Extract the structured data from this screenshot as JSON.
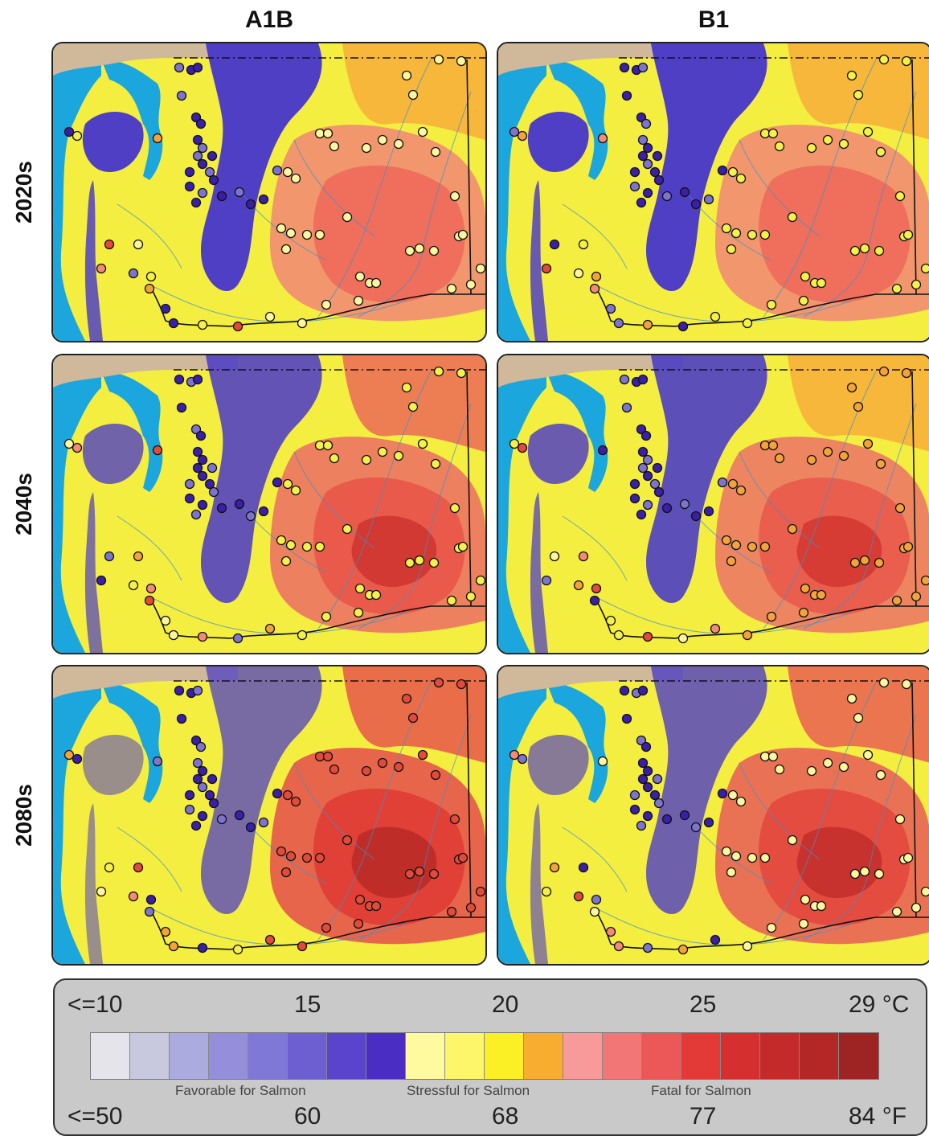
{
  "columns": [
    "A1B",
    "B1"
  ],
  "rows": [
    "2020s",
    "2040s",
    "2080s"
  ],
  "legend": {
    "celsius_ticks": [
      "<=10",
      "15",
      "20",
      "25",
      "29 °C"
    ],
    "fahrenheit_ticks": [
      "<=50",
      "60",
      "68",
      "77",
      "84 °F"
    ],
    "categories": [
      "Favorable for Salmon",
      "Stressful for Salmon",
      "Fatal for Salmon"
    ],
    "colors": [
      "#e4e4ea",
      "#c8c8de",
      "#ababdf",
      "#958fdb",
      "#7f78d6",
      "#6d5fd1",
      "#5a44cb",
      "#4a2ec4",
      "#fffaa0",
      "#fdf56a",
      "#fbf026",
      "#f8ad30",
      "#f99a9a",
      "#f37676",
      "#ec5757",
      "#e43a37",
      "#d52f2f",
      "#c42a2a",
      "#b42727",
      "#9e2424"
    ]
  },
  "map_colors": {
    "ocean": "#1ba6de",
    "canada_land": "#cfb99a",
    "cold": "#4f3fc4",
    "stressful": "#f4ee40",
    "warm": "#f09070",
    "hot": "#e03c34",
    "river": "#3a8fd2"
  }
}
